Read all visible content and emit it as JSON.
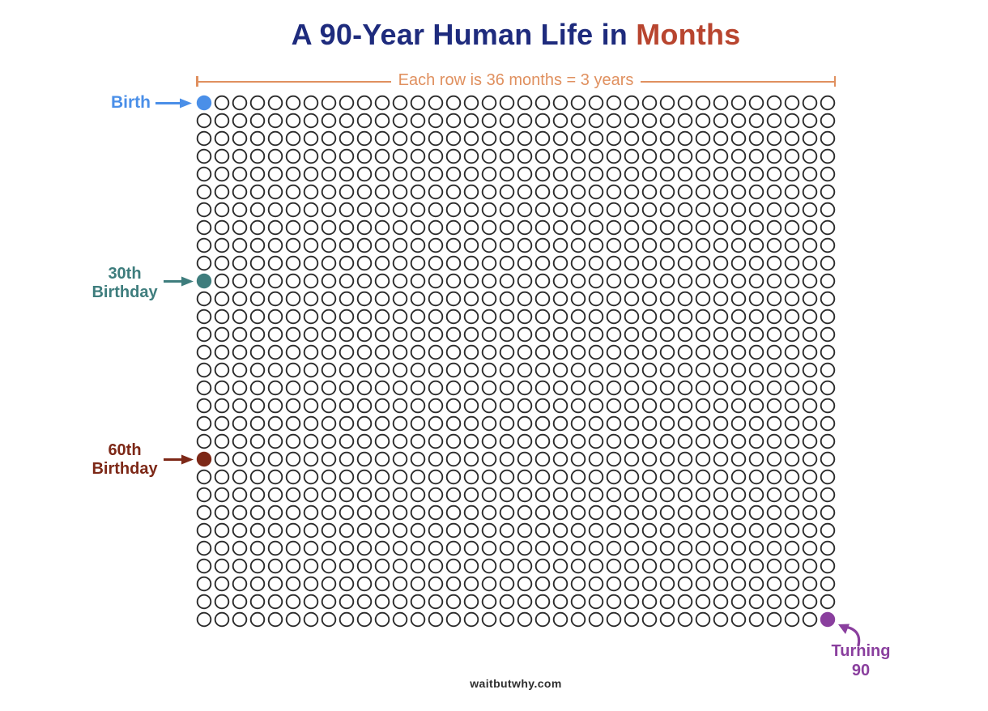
{
  "title": {
    "main": "A 90-Year Human Life in",
    "highlight": "Months",
    "main_color": "#1e2b7d",
    "highlight_color": "#b8452f"
  },
  "bracket": {
    "label": "Each row is 36 months = 3 years",
    "color": "#e0905f"
  },
  "chart_data": {
    "type": "waffle",
    "title": "A 90-Year Human Life in Months",
    "description": "Dot grid of 1080 circles; each circle represents one month of a 90-year human life",
    "rows": 30,
    "cols": 36,
    "months_per_row": 36,
    "years_per_row": 3,
    "total_months": 1080,
    "circle_outline_color": "#2b2b2b",
    "milestones": [
      {
        "id": "birth",
        "label": "Birth",
        "label_lines": [
          "Birth"
        ],
        "row": 0,
        "col": 0,
        "color": "#4a8fe8"
      },
      {
        "id": "thirtieth-birthday",
        "label": "30th Birthday",
        "label_lines": [
          "30th",
          "Birthday"
        ],
        "row": 10,
        "col": 0,
        "color": "#3e7d7d"
      },
      {
        "id": "sixtieth-birthday",
        "label": "60th Birthday",
        "label_lines": [
          "60th",
          "Birthday"
        ],
        "row": 20,
        "col": 0,
        "color": "#7d2817"
      },
      {
        "id": "turning-90",
        "label": "Turning 90",
        "label_lines": [
          "Turning",
          "90"
        ],
        "row": 29,
        "col": 35,
        "color": "#8a3f9e"
      }
    ]
  },
  "footer": {
    "site": "waitbutwhy.com",
    "color": "#2e2e2e"
  }
}
